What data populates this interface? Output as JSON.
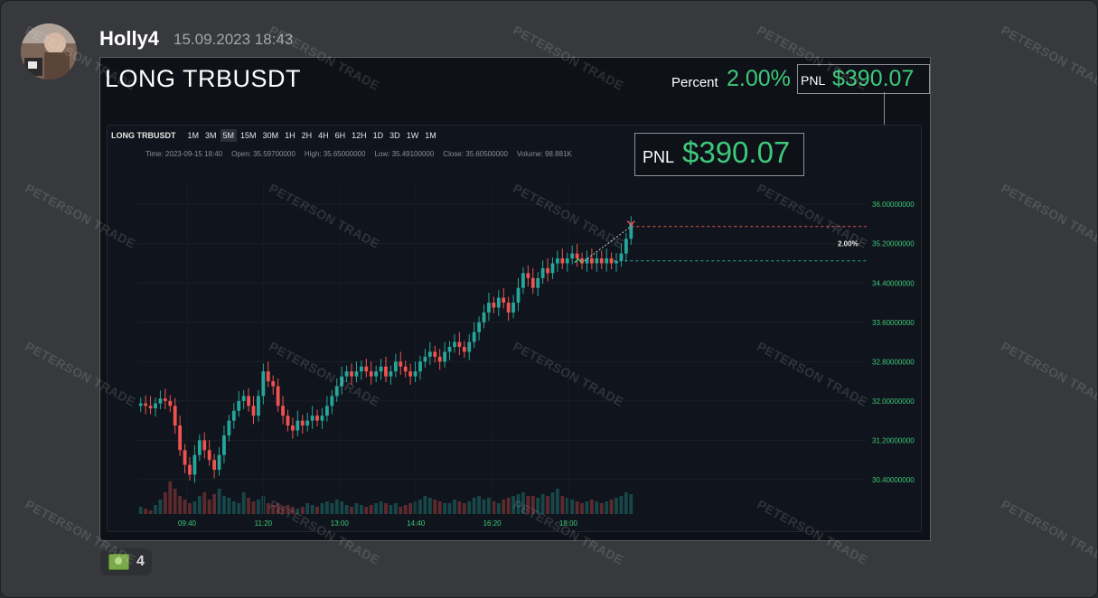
{
  "message": {
    "username": "Holly4",
    "timestamp": "15.09.2023 18:43"
  },
  "trade_card": {
    "title": "LONG TRBUSDT",
    "percent_label": "Percent",
    "percent_value": "2.00%",
    "pnl_label": "PNL",
    "pnl_value": "$390.07"
  },
  "chart_toolbar": {
    "symbol": "LONG TRBUSDT",
    "timeframes": [
      "1M",
      "3M",
      "5M",
      "15M",
      "30M",
      "1H",
      "2H",
      "4H",
      "6H",
      "12H",
      "1D",
      "3D",
      "1W",
      "1M"
    ],
    "active_timeframe": "5M"
  },
  "ohlc_bar": {
    "time": "Time: 2023-09-15 18:40",
    "open": "Open: 35.59700000",
    "high": "High: 35.65000000",
    "low": "Low: 35.49100000",
    "close": "Close: 35.60500000",
    "volume": "Volume: 98.881K"
  },
  "chart_data": {
    "type": "candlestick",
    "y_ticks": [
      "36.00000000",
      "35.20000000",
      "34.40000000",
      "33.60000000",
      "32.80000000",
      "32.00000000",
      "31.20000000",
      "30.40000000"
    ],
    "x_ticks": [
      "09:40",
      "11:20",
      "13:00",
      "14:40",
      "16:20",
      "18:00"
    ],
    "ylim": [
      29.7,
      36.5
    ],
    "entry_price": 34.85,
    "exit_price": 35.55,
    "range_label": "2.00%",
    "closes": [
      31.95,
      31.9,
      31.85,
      31.95,
      32.05,
      32.0,
      31.9,
      31.5,
      31.0,
      30.7,
      30.5,
      30.9,
      31.2,
      31.0,
      30.8,
      30.6,
      30.9,
      31.3,
      31.6,
      31.8,
      32.0,
      32.1,
      31.9,
      31.7,
      32.1,
      32.6,
      32.4,
      32.3,
      31.9,
      31.7,
      31.5,
      31.4,
      31.6,
      31.5,
      31.6,
      31.7,
      31.6,
      31.7,
      31.9,
      32.1,
      32.3,
      32.5,
      32.6,
      32.5,
      32.6,
      32.7,
      32.6,
      32.5,
      32.6,
      32.7,
      32.5,
      32.6,
      32.8,
      32.7,
      32.6,
      32.5,
      32.6,
      32.8,
      32.9,
      33.0,
      32.9,
      32.8,
      33.0,
      33.1,
      33.2,
      33.1,
      33.0,
      33.2,
      33.4,
      33.6,
      33.8,
      34.0,
      33.9,
      34.1,
      34.0,
      33.8,
      34.0,
      34.3,
      34.6,
      34.5,
      34.3,
      34.5,
      34.7,
      34.6,
      34.8,
      34.9,
      34.8,
      34.9,
      35.0,
      34.9,
      34.8,
      34.9,
      34.8,
      34.9,
      34.8,
      34.9,
      34.8,
      34.85,
      35.0,
      35.3,
      35.6
    ],
    "volumes": [
      0.2,
      0.15,
      0.1,
      0.25,
      0.4,
      0.6,
      0.9,
      0.7,
      0.5,
      0.4,
      0.3,
      0.35,
      0.5,
      0.6,
      0.4,
      0.55,
      0.7,
      0.5,
      0.45,
      0.35,
      0.3,
      0.6,
      0.45,
      0.35,
      0.4,
      0.5,
      0.3,
      0.25,
      0.3,
      0.2,
      0.25,
      0.2,
      0.15,
      0.2,
      0.3,
      0.25,
      0.2,
      0.3,
      0.35,
      0.3,
      0.4,
      0.35,
      0.25,
      0.2,
      0.3,
      0.25,
      0.2,
      0.25,
      0.3,
      0.35,
      0.3,
      0.25,
      0.3,
      0.2,
      0.25,
      0.3,
      0.35,
      0.4,
      0.5,
      0.45,
      0.4,
      0.35,
      0.3,
      0.3,
      0.4,
      0.35,
      0.3,
      0.35,
      0.45,
      0.5,
      0.4,
      0.45,
      0.35,
      0.3,
      0.4,
      0.45,
      0.5,
      0.55,
      0.6,
      0.5,
      0.5,
      0.45,
      0.55,
      0.5,
      0.6,
      0.7,
      0.5,
      0.45,
      0.4,
      0.35,
      0.3,
      0.35,
      0.4,
      0.35,
      0.3,
      0.35,
      0.4,
      0.45,
      0.5,
      0.6,
      0.55
    ]
  },
  "reaction": {
    "emoji": "money-bill-emoji",
    "count": "4"
  },
  "watermark_text": "PETERSON TRADE",
  "colors": {
    "up": "#26a69a",
    "down": "#ef5350",
    "accent_green": "#3ec97a"
  }
}
